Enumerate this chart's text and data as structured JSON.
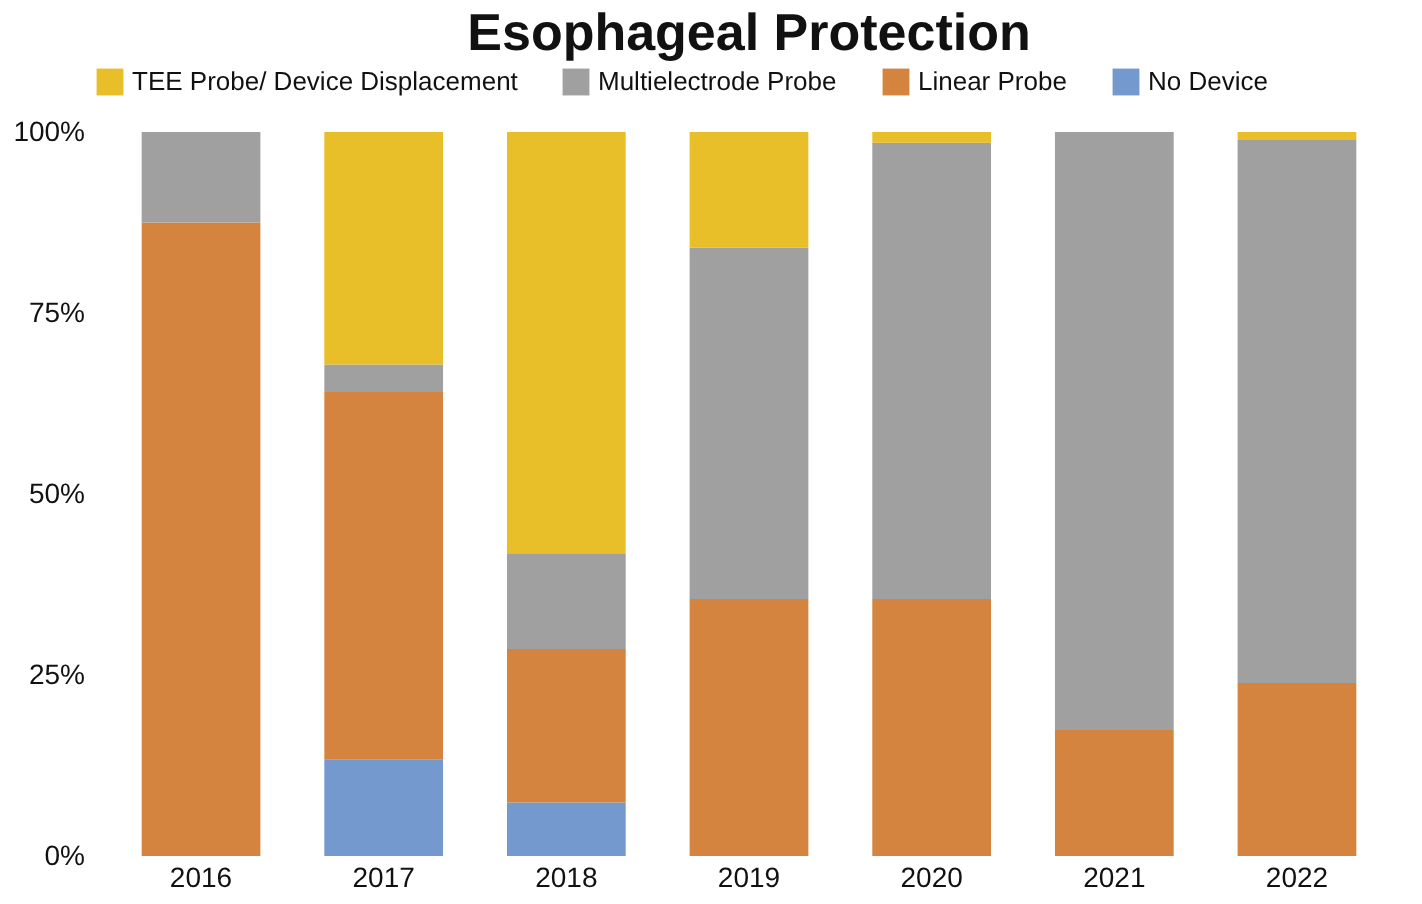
{
  "chart_data": {
    "type": "bar",
    "title": "Esophageal Protection",
    "stacked": true,
    "categories": [
      "2016",
      "2017",
      "2018",
      "2019",
      "2020",
      "2021",
      "2022"
    ],
    "series": [
      {
        "name": "No Device",
        "color": "#7499cf",
        "values": [
          null,
          13.3,
          7.4,
          null,
          null,
          null,
          null
        ]
      },
      {
        "name": "Linear Probe",
        "color": "#d4843e",
        "values": [
          87.5,
          50.8,
          21.2,
          35.5,
          35.5,
          17.4,
          23.9
        ]
      },
      {
        "name": "Multielectrode Probe",
        "color": "#a0a0a0",
        "values": [
          12.5,
          3.8,
          13.2,
          48.5,
          63,
          82.6,
          75
        ]
      },
      {
        "name": "TEE Probe/ Device Displacement",
        "color": "#e8bf28",
        "values": [
          null,
          32.1,
          58.2,
          16,
          1.5,
          null,
          1.1
        ]
      }
    ],
    "ylim": [
      0,
      100
    ],
    "yticks": [
      {
        "value": 0,
        "label": "0%"
      },
      {
        "value": 25,
        "label": "25%"
      },
      {
        "value": 50,
        "label": "50%"
      },
      {
        "value": 75,
        "label": "75%"
      },
      {
        "value": 100,
        "label": "100%"
      }
    ],
    "grid": false,
    "legend": "top"
  }
}
